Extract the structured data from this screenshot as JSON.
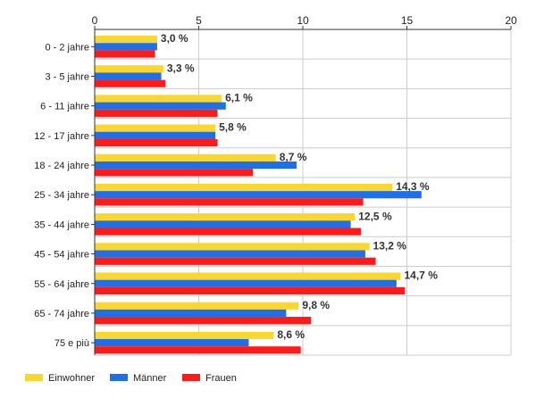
{
  "chart_data": {
    "type": "bar",
    "orientation": "horizontal",
    "categories": [
      "0 - 2 jahre",
      "3 - 5 jahre",
      "6 - 11 jahre",
      "12 - 17 jahre",
      "18 - 24 jahre",
      "25 - 34 jahre",
      "35 - 44 jahre",
      "45 - 54 jahre",
      "55 - 64 jahre",
      "65 - 74 jahre",
      "75 e più"
    ],
    "series": [
      {
        "name": "Einwohner",
        "color": "#f9d72f",
        "values": [
          3.0,
          3.3,
          6.1,
          5.8,
          8.7,
          14.3,
          12.5,
          13.2,
          14.7,
          9.8,
          8.6
        ]
      },
      {
        "name": "Männer",
        "color": "#1e6fe8",
        "values": [
          3.0,
          3.2,
          6.3,
          5.8,
          9.7,
          15.7,
          12.3,
          13.0,
          14.5,
          9.2,
          7.4
        ]
      },
      {
        "name": "Frauen",
        "color": "#ff1a1a",
        "values": [
          2.9,
          3.4,
          5.9,
          5.9,
          7.6,
          12.9,
          12.8,
          13.5,
          14.9,
          10.4,
          9.9
        ]
      }
    ],
    "data_labels": [
      "3,0 %",
      "3,3 %",
      "6,1 %",
      "5,8 %",
      "8,7 %",
      "14,3 %",
      "12,5 %",
      "13,2 %",
      "14,7 %",
      "9,8 %",
      "8,6 %"
    ],
    "x_ticks": [
      "0",
      "5",
      "10",
      "15",
      "20"
    ],
    "xlim": [
      0,
      20
    ],
    "grid": true,
    "x_axis_position": "top",
    "legend_position": "bottom-left"
  },
  "legend": {
    "items": [
      "Einwohner",
      "Männer",
      "Frauen"
    ]
  }
}
